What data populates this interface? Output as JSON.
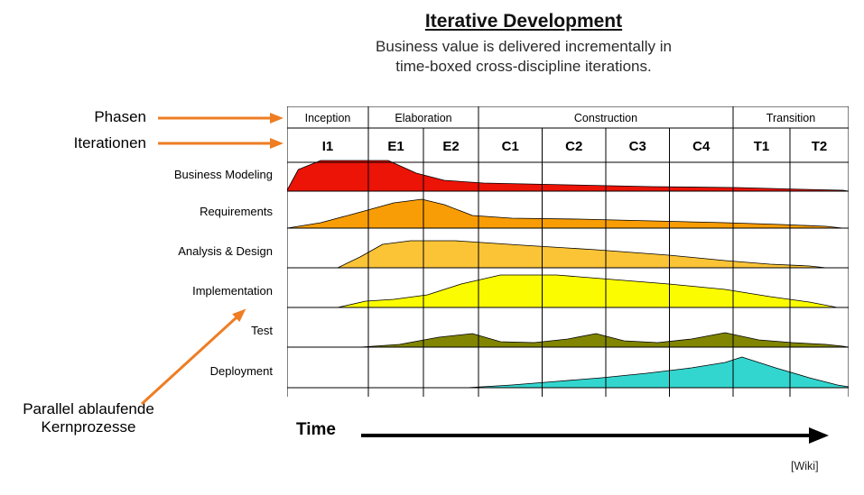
{
  "title": "Iterative Development",
  "subtitle": [
    "Business value is delivered incrementally in",
    "time-boxed cross-discipline iterations."
  ],
  "labels": {
    "phasen": "Phasen",
    "iterationen": "Iterationen",
    "parallel": [
      "Parallel ablaufende",
      "Kernprozesse"
    ],
    "time": "Time",
    "credit": "[Wiki]"
  },
  "colors": {
    "annotation_arrow": "#ee7d23",
    "grid": "#000000",
    "time_arrow": "#000000"
  },
  "chart_data": {
    "type": "area",
    "x_axis": "Time",
    "phases": [
      {
        "label": "Inception",
        "iterations": [
          "I1"
        ]
      },
      {
        "label": "Elaboration",
        "iterations": [
          "E1",
          "E2"
        ]
      },
      {
        "label": "Construction",
        "iterations": [
          "C1",
          "C2",
          "C3",
          "C4"
        ]
      },
      {
        "label": "Transition",
        "iterations": [
          "T1",
          "T2"
        ]
      }
    ],
    "iteration_widths": {
      "I1": 90,
      "E1": 61,
      "E2": 61,
      "C1": 70.5,
      "C2": 70.5,
      "C3": 70.5,
      "C4": 70.5,
      "T1": 63,
      "T2": 65
    },
    "disciplines": [
      {
        "label": "Business Modeling",
        "color": "#ec1307",
        "profile": [
          [
            0,
            1
          ],
          [
            2,
            24
          ],
          [
            6,
            34
          ],
          [
            18,
            34
          ],
          [
            23,
            20
          ],
          [
            28,
            12
          ],
          [
            35,
            9
          ],
          [
            50,
            7
          ],
          [
            65,
            5
          ],
          [
            80,
            4
          ],
          [
            92,
            2
          ],
          [
            99,
            1
          ],
          [
            100,
            0
          ]
        ]
      },
      {
        "label": "Requirements",
        "color": "#f89d05",
        "profile": [
          [
            0,
            0
          ],
          [
            6,
            6
          ],
          [
            12,
            16
          ],
          [
            19,
            28
          ],
          [
            24,
            32
          ],
          [
            28,
            26
          ],
          [
            33,
            14
          ],
          [
            40,
            11
          ],
          [
            52,
            10
          ],
          [
            65,
            8
          ],
          [
            78,
            6
          ],
          [
            88,
            4
          ],
          [
            96,
            2
          ],
          [
            99,
            0
          ]
        ]
      },
      {
        "label": "Analysis & Design",
        "color": "#fbc437",
        "profile": [
          [
            9,
            0
          ],
          [
            13,
            12
          ],
          [
            17,
            26
          ],
          [
            22,
            30
          ],
          [
            30,
            30
          ],
          [
            42,
            25
          ],
          [
            55,
            20
          ],
          [
            68,
            14
          ],
          [
            78,
            8
          ],
          [
            86,
            4
          ],
          [
            93,
            2
          ],
          [
            96,
            0
          ]
        ]
      },
      {
        "label": "Implementation",
        "color": "#fcfc00",
        "profile": [
          [
            9,
            0
          ],
          [
            14,
            7
          ],
          [
            19,
            9
          ],
          [
            25,
            14
          ],
          [
            31,
            26
          ],
          [
            38,
            36
          ],
          [
            48,
            36
          ],
          [
            58,
            31
          ],
          [
            68,
            26
          ],
          [
            78,
            20
          ],
          [
            86,
            12
          ],
          [
            93,
            6
          ],
          [
            98,
            0
          ]
        ]
      },
      {
        "label": "Test",
        "color": "#818500",
        "profile": [
          [
            13,
            0
          ],
          [
            20,
            3
          ],
          [
            27,
            11
          ],
          [
            33,
            15
          ],
          [
            38,
            6
          ],
          [
            44,
            5
          ],
          [
            50,
            9
          ],
          [
            55,
            15
          ],
          [
            60,
            7
          ],
          [
            66,
            5
          ],
          [
            72,
            9
          ],
          [
            78,
            16
          ],
          [
            84,
            8
          ],
          [
            90,
            5
          ],
          [
            96,
            3
          ],
          [
            99,
            1
          ],
          [
            100,
            0
          ]
        ]
      },
      {
        "label": "Deployment",
        "color": "#33d6cf",
        "profile": [
          [
            32,
            0
          ],
          [
            40,
            3
          ],
          [
            48,
            7
          ],
          [
            56,
            11
          ],
          [
            64,
            16
          ],
          [
            72,
            22
          ],
          [
            78,
            28
          ],
          [
            81,
            34
          ],
          [
            87,
            22
          ],
          [
            93,
            11
          ],
          [
            98,
            3
          ],
          [
            100,
            1
          ]
        ]
      }
    ]
  }
}
